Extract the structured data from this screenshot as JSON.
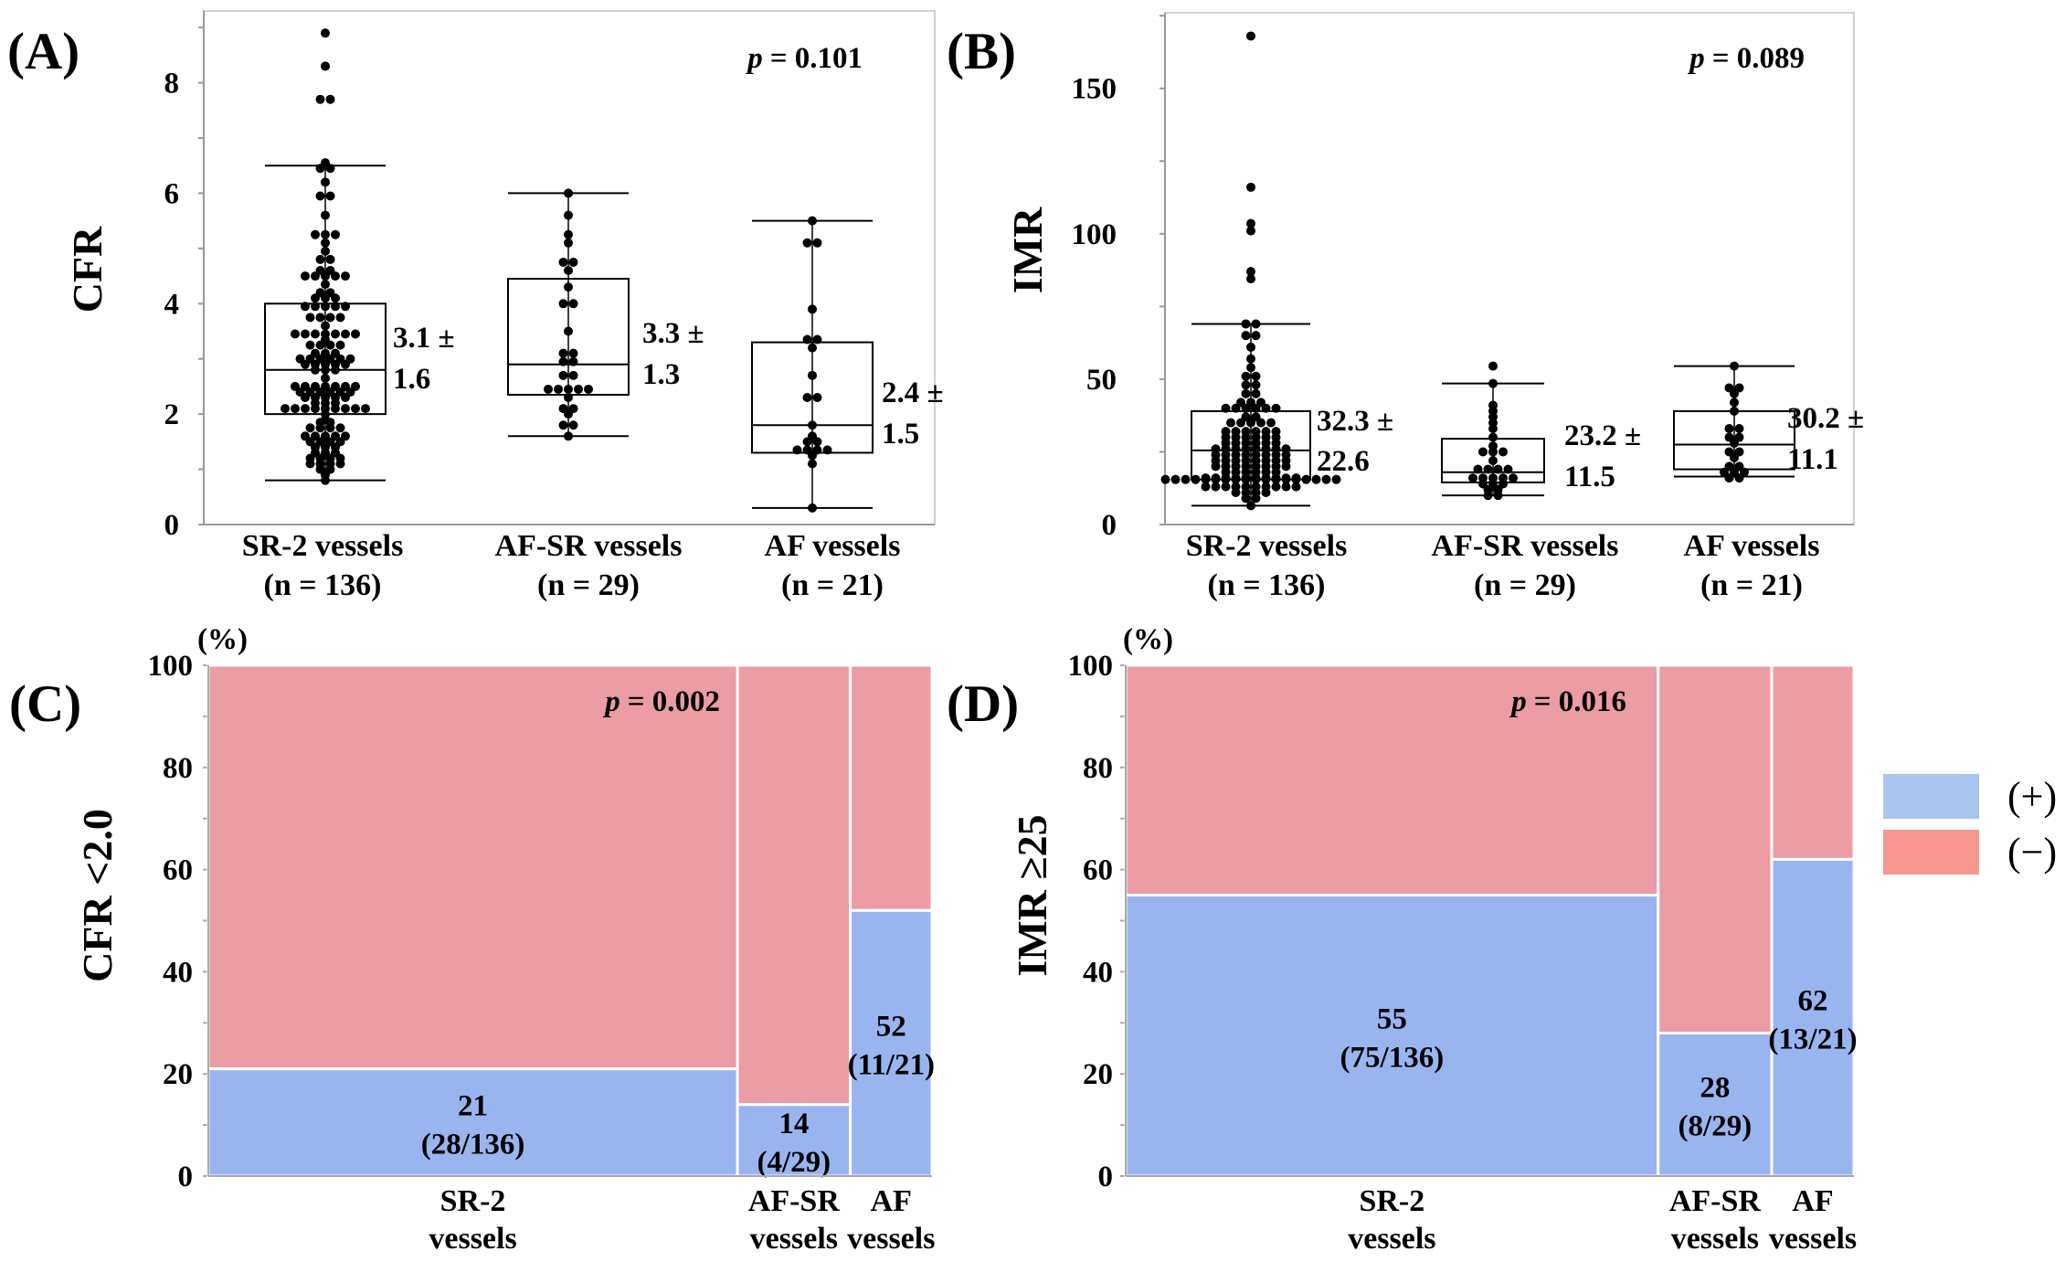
{
  "chart_data": [
    {
      "type": "box",
      "panel_label": "(A)",
      "ylabel": "CFR",
      "ylim": [
        0,
        9.3
      ],
      "yticks": [
        0,
        2,
        4,
        6,
        8
      ],
      "p_symbol": "p",
      "p_value": "= 0.101",
      "categories": [
        {
          "name": "SR-2 vessels",
          "n_label": "(n = 136)"
        },
        {
          "name": "AF-SR vessels",
          "n_label": "(n = 29)"
        },
        {
          "name": "AF vessels",
          "n_label": "(n = 21)"
        }
      ],
      "groups": [
        {
          "whisker_low": 0.8,
          "q1": 2.0,
          "median": 2.8,
          "q3": 4.0,
          "whisker_high": 6.5,
          "mean_pm": "3.1 ±",
          "sd": "1.6",
          "points": [
            [
              8.9,
              1
            ],
            [
              8.3,
              1
            ],
            [
              7.7,
              2
            ],
            [
              6.55,
              1
            ],
            [
              6.45,
              2
            ],
            [
              6.2,
              1
            ],
            [
              5.95,
              2
            ],
            [
              5.6,
              1
            ],
            [
              5.25,
              3
            ],
            [
              5.1,
              1
            ],
            [
              4.95,
              1
            ],
            [
              4.8,
              2
            ],
            [
              4.6,
              2
            ],
            [
              4.5,
              5
            ],
            [
              4.35,
              1
            ],
            [
              4.2,
              2
            ],
            [
              4.1,
              3
            ],
            [
              3.95,
              5
            ],
            [
              3.75,
              4
            ],
            [
              3.6,
              1
            ],
            [
              3.45,
              7
            ],
            [
              3.35,
              1
            ],
            [
              3.25,
              4
            ],
            [
              3.1,
              3
            ],
            [
              3.0,
              6
            ],
            [
              2.9,
              5
            ],
            [
              2.8,
              3
            ],
            [
              2.65,
              1
            ],
            [
              2.5,
              7
            ],
            [
              2.4,
              6
            ],
            [
              2.3,
              5
            ],
            [
              2.2,
              3
            ],
            [
              2.1,
              9
            ],
            [
              2.0,
              1
            ],
            [
              1.9,
              1
            ],
            [
              1.85,
              2
            ],
            [
              1.75,
              4
            ],
            [
              1.6,
              5
            ],
            [
              1.5,
              4
            ],
            [
              1.4,
              3
            ],
            [
              1.3,
              3
            ],
            [
              1.2,
              4
            ],
            [
              1.1,
              4
            ],
            [
              1.0,
              2
            ],
            [
              0.9,
              1
            ],
            [
              0.8,
              1
            ]
          ]
        },
        {
          "whisker_low": 1.6,
          "q1": 2.35,
          "median": 2.9,
          "q3": 4.45,
          "whisker_high": 6.0,
          "mean_pm": "3.3 ±",
          "sd": "1.3",
          "points": [
            [
              6.0,
              1
            ],
            [
              5.6,
              1
            ],
            [
              5.25,
              1
            ],
            [
              5.1,
              1
            ],
            [
              4.75,
              2
            ],
            [
              4.6,
              1
            ],
            [
              4.3,
              1
            ],
            [
              4.0,
              2
            ],
            [
              3.5,
              1
            ],
            [
              3.1,
              2
            ],
            [
              2.95,
              2
            ],
            [
              2.7,
              2
            ],
            [
              2.45,
              5
            ],
            [
              2.3,
              1
            ],
            [
              2.1,
              2
            ],
            [
              2.0,
              1
            ],
            [
              1.8,
              2
            ],
            [
              1.6,
              1
            ]
          ]
        },
        {
          "whisker_low": 0.3,
          "q1": 1.3,
          "median": 1.8,
          "q3": 3.3,
          "whisker_high": 5.5,
          "mean_pm": "2.4 ±",
          "sd": "1.5",
          "points": [
            [
              5.5,
              1
            ],
            [
              5.1,
              2
            ],
            [
              3.9,
              1
            ],
            [
              3.35,
              2
            ],
            [
              3.2,
              1
            ],
            [
              2.7,
              1
            ],
            [
              2.3,
              2
            ],
            [
              1.8,
              1
            ],
            [
              1.6,
              1
            ],
            [
              1.5,
              2
            ],
            [
              1.35,
              4
            ],
            [
              1.25,
              1
            ],
            [
              1.1,
              1
            ],
            [
              0.3,
              1
            ]
          ]
        }
      ]
    },
    {
      "type": "box",
      "panel_label": "(B)",
      "ylabel": "IMR",
      "ylim": [
        0,
        176
      ],
      "yticks": [
        0,
        50,
        100,
        150
      ],
      "p_symbol": "p",
      "p_value": "= 0.089",
      "categories": [
        {
          "name": "SR-2 vessels",
          "n_label": "(n = 136)"
        },
        {
          "name": "AF-SR vessels",
          "n_label": "(n = 29)"
        },
        {
          "name": "AF vessels",
          "n_label": "(n = 21)"
        }
      ],
      "groups": [
        {
          "whisker_low": 6.5,
          "q1": 15.5,
          "median": 25.5,
          "q3": 39,
          "whisker_high": 69,
          "mean_pm": "32.3 ±",
          "sd": "22.6",
          "points": [
            [
              168,
              1
            ],
            [
              116,
              1
            ],
            [
              103.5,
              1
            ],
            [
              101,
              1
            ],
            [
              87,
              1
            ],
            [
              84.5,
              1
            ],
            [
              69,
              2
            ],
            [
              65,
              2
            ],
            [
              61,
              1
            ],
            [
              57,
              1
            ],
            [
              54,
              1
            ],
            [
              51,
              2
            ],
            [
              48,
              2
            ],
            [
              45,
              2
            ],
            [
              42,
              3
            ],
            [
              40,
              6
            ],
            [
              37,
              2
            ],
            [
              35,
              5
            ],
            [
              32,
              6
            ],
            [
              30,
              6
            ],
            [
              28,
              6
            ],
            [
              26,
              8
            ],
            [
              24,
              8
            ],
            [
              22,
              8
            ],
            [
              20,
              8
            ],
            [
              18,
              6
            ],
            [
              16,
              10
            ],
            [
              15.5,
              18
            ],
            [
              13,
              10
            ],
            [
              11,
              4
            ],
            [
              9,
              2
            ],
            [
              6.5,
              1
            ]
          ]
        },
        {
          "whisker_low": 10,
          "q1": 14.5,
          "median": 18,
          "q3": 29.5,
          "whisker_high": 48.5,
          "mean_pm": "23.2 ±",
          "sd": "11.5",
          "points": [
            [
              54.5,
              1
            ],
            [
              48.5,
              1
            ],
            [
              41,
              1
            ],
            [
              39,
              1
            ],
            [
              37,
              1
            ],
            [
              35,
              1
            ],
            [
              33,
              1
            ],
            [
              30,
              1
            ],
            [
              27,
              1
            ],
            [
              25,
              3
            ],
            [
              22,
              1
            ],
            [
              19,
              4
            ],
            [
              16,
              5
            ],
            [
              14,
              3
            ],
            [
              12,
              2
            ],
            [
              10,
              2
            ]
          ]
        },
        {
          "whisker_low": 16.5,
          "q1": 19,
          "median": 27.5,
          "q3": 39,
          "whisker_high": 54.5,
          "mean_pm": "30.2 ±",
          "sd": "11.1",
          "points": [
            [
              54.5,
              1
            ],
            [
              47,
              2
            ],
            [
              45,
              1
            ],
            [
              42,
              1
            ],
            [
              39,
              1
            ],
            [
              33,
              2
            ],
            [
              30,
              2
            ],
            [
              28,
              1
            ],
            [
              25,
              2
            ],
            [
              23,
              1
            ],
            [
              20,
              2
            ],
            [
              18,
              3
            ],
            [
              16,
              2
            ]
          ]
        }
      ]
    },
    {
      "type": "mosaic",
      "panel_label": "(C)",
      "ylabel": "CFR <2.0",
      "yunit": "(%)",
      "ylim": [
        0,
        100
      ],
      "yticks": [
        0,
        20,
        40,
        60,
        80,
        100
      ],
      "p_symbol": "p",
      "p_value": "= 0.002",
      "categories": [
        {
          "line1": "SR-2",
          "line2": "vessels",
          "n": 136,
          "positive_pct": 21,
          "pct_label": "21",
          "frac_label": "(28/136)"
        },
        {
          "line1": "AF-SR",
          "line2": "vessels",
          "n": 29,
          "positive_pct": 14,
          "pct_label": "14",
          "frac_label": "(4/29)"
        },
        {
          "line1": "AF",
          "line2": "vessels",
          "n": 21,
          "positive_pct": 52,
          "pct_label": "52",
          "frac_label": "(11/21)"
        }
      ]
    },
    {
      "type": "mosaic",
      "panel_label": "(D)",
      "ylabel": "IMR ≥25",
      "yunit": "(%)",
      "ylim": [
        0,
        100
      ],
      "yticks": [
        0,
        20,
        40,
        60,
        80,
        100
      ],
      "p_symbol": "p",
      "p_value": "= 0.016",
      "categories": [
        {
          "line1": "SR-2",
          "line2": "vessels",
          "n": 136,
          "positive_pct": 55,
          "pct_label": "55",
          "frac_label": "(75/136)"
        },
        {
          "line1": "AF-SR",
          "line2": "vessels",
          "n": 29,
          "positive_pct": 28,
          "pct_label": "28",
          "frac_label": "(8/29)"
        },
        {
          "line1": "AF",
          "line2": "vessels",
          "n": 21,
          "positive_pct": 62,
          "pct_label": "62",
          "frac_label": "(13/21)"
        }
      ]
    }
  ],
  "colors": {
    "positive": "#99b5f0",
    "negative": "#eb9ca5",
    "legend_positive": "#a9c4ee",
    "legend_negative": "#f7968e"
  },
  "legend": {
    "items": [
      {
        "label": "(+)",
        "color": "#a9c4ee"
      },
      {
        "label": "(−)",
        "color": "#f7968e"
      }
    ]
  }
}
